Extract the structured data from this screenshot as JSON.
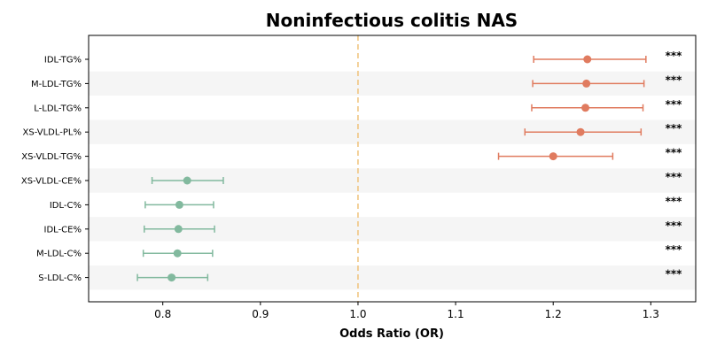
{
  "chart_data": {
    "type": "scatter",
    "subtype": "forest-plot",
    "title": "Noninfectious colitis NAS",
    "xlabel": "Odds Ratio (OR)",
    "ylabel": "",
    "xlim": [
      0.724,
      1.346
    ],
    "xticks": [
      "0.8",
      "0.9",
      "1.0",
      "1.1",
      "1.2",
      "1.3"
    ],
    "reference_line": {
      "x": 1.0,
      "style": "dashed",
      "color": "#f0c27a"
    },
    "alternating_row_shading": true,
    "colors": {
      "risk": "#e07b5f",
      "protective": "#82b99e",
      "stripe": "#f5f5f5",
      "axis": "#000000"
    },
    "rows": [
      {
        "label": "IDL-TG%",
        "or": 1.235,
        "lower": 1.18,
        "upper": 1.295,
        "sig": "***",
        "group": "risk"
      },
      {
        "label": "M-LDL-TG%",
        "or": 1.234,
        "lower": 1.179,
        "upper": 1.293,
        "sig": "***",
        "group": "risk"
      },
      {
        "label": "L-LDL-TG%",
        "or": 1.233,
        "lower": 1.178,
        "upper": 1.292,
        "sig": "***",
        "group": "risk"
      },
      {
        "label": "XS-VLDL-PL%",
        "or": 1.228,
        "lower": 1.171,
        "upper": 1.29,
        "sig": "***",
        "group": "risk"
      },
      {
        "label": "XS-VLDL-TG%",
        "or": 1.2,
        "lower": 1.144,
        "upper": 1.261,
        "sig": "***",
        "group": "risk"
      },
      {
        "label": "XS-VLDL-CE%",
        "or": 0.825,
        "lower": 0.789,
        "upper": 0.862,
        "sig": "***",
        "group": "protective"
      },
      {
        "label": "IDL-C%",
        "or": 0.817,
        "lower": 0.782,
        "upper": 0.852,
        "sig": "***",
        "group": "protective"
      },
      {
        "label": "IDL-CE%",
        "or": 0.816,
        "lower": 0.781,
        "upper": 0.853,
        "sig": "***",
        "group": "protective"
      },
      {
        "label": "M-LDL-C%",
        "or": 0.815,
        "lower": 0.78,
        "upper": 0.851,
        "sig": "***",
        "group": "protective"
      },
      {
        "label": "S-LDL-C%",
        "or": 0.809,
        "lower": 0.774,
        "upper": 0.846,
        "sig": "***",
        "group": "protective"
      }
    ]
  }
}
